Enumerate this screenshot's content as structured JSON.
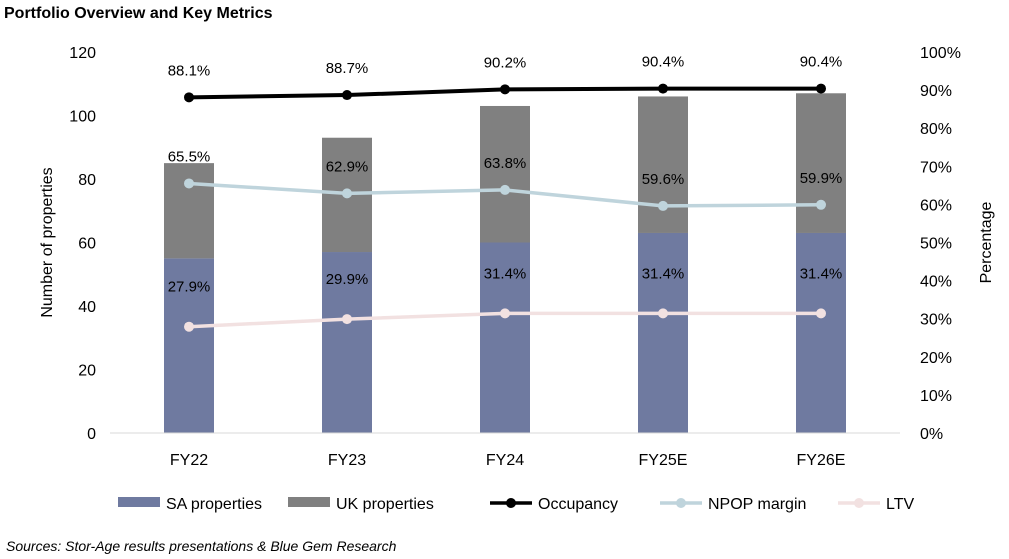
{
  "title": "Portfolio Overview and Key Metrics",
  "source": "Sources: Stor-Age results presentations & Blue Gem Research",
  "chart_data": {
    "type": "bar",
    "stacked": true,
    "categories": [
      "FY22",
      "FY23",
      "FY24",
      "FY25E",
      "FY26E"
    ],
    "y_left": {
      "label": "Number of properties",
      "min": 0,
      "max": 120,
      "step": 20
    },
    "y_right": {
      "label": "Percentage",
      "min": 0,
      "max": 100,
      "step": 10,
      "unit": "%"
    },
    "bar_series": [
      {
        "name": "SA properties",
        "color": "#6F7AA0",
        "values": [
          55,
          57,
          60,
          63,
          63
        ]
      },
      {
        "name": "UK properties",
        "color": "#808080",
        "values": [
          30,
          36,
          43,
          43,
          44
        ]
      }
    ],
    "line_series": [
      {
        "name": "Occupancy",
        "color": "#000000",
        "values": [
          88.1,
          88.7,
          90.2,
          90.4,
          90.4
        ],
        "labels": [
          "88.1%",
          "88.7%",
          "90.2%",
          "90.4%",
          "90.4%"
        ]
      },
      {
        "name": "NPOP margin",
        "color": "#BFD4DC",
        "values": [
          65.5,
          62.9,
          63.8,
          59.6,
          59.9
        ],
        "labels": [
          "65.5%",
          "62.9%",
          "63.8%",
          "59.6%",
          "59.9%"
        ]
      },
      {
        "name": "LTV",
        "color": "#F2E1E1",
        "values": [
          27.9,
          29.9,
          31.4,
          31.4,
          31.4
        ],
        "labels": [
          "27.9%",
          "29.9%",
          "31.4%",
          "31.4%",
          "31.4%"
        ]
      }
    ],
    "legend": [
      "SA properties",
      "UK properties",
      "Occupancy",
      "NPOP margin",
      "LTV"
    ],
    "legend_position": "bottom",
    "grid": false
  }
}
